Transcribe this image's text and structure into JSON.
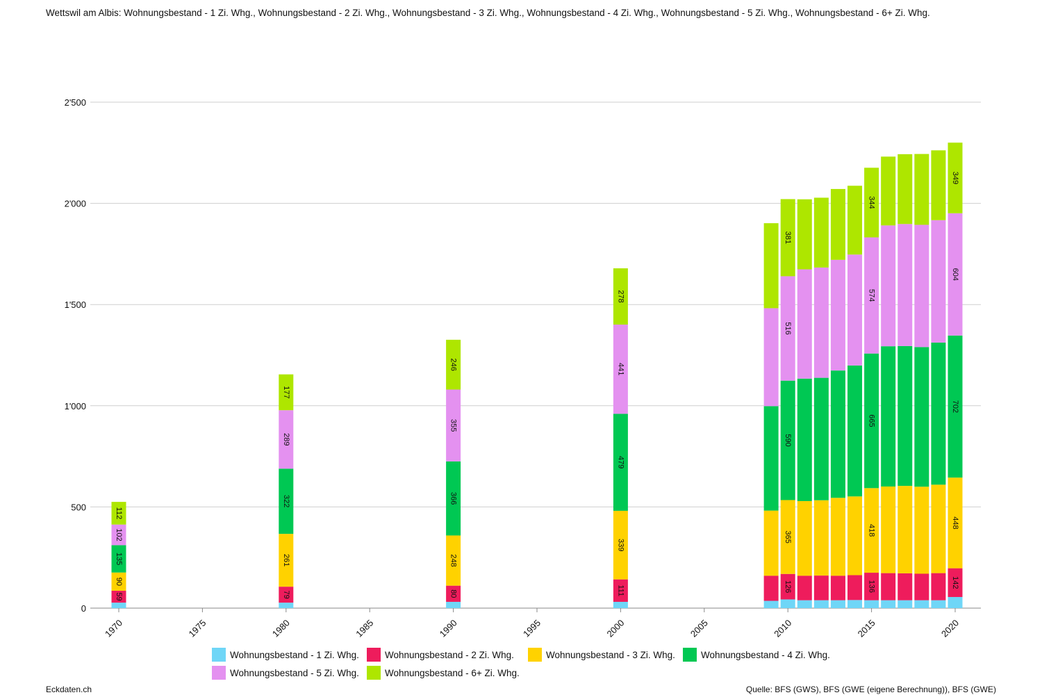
{
  "title": "Wettswil am Albis: Wohnungsbestand - 1 Zi. Whg., Wohnungsbestand - 2 Zi. Whg., Wohnungsbestand - 3 Zi. Whg., Wohnungsbestand - 4 Zi. Whg., Wohnungsbestand - 5 Zi. Whg., Wohnungsbestand - 6+ Zi. Whg.",
  "footer": {
    "brand": "Eckdaten.ch",
    "source": "Quelle: BFS (GWS), BFS (GWE (eigene Berechnung)), BFS (GWE)"
  },
  "chart_data": {
    "type": "bar",
    "stacked": true,
    "y_tick_labels": [
      "0",
      "500",
      "1'000",
      "1'500",
      "2'000",
      "2'500"
    ],
    "y_ticks": [
      0,
      500,
      1000,
      1500,
      2000,
      2500
    ],
    "ylim": [
      0,
      2500
    ],
    "x_tick_labels": [
      "1970",
      "1975",
      "1980",
      "1985",
      "1990",
      "1995",
      "2000",
      "2005",
      "2010",
      "2015",
      "2020"
    ],
    "x_ticks": [
      1970,
      1975,
      1980,
      1985,
      1990,
      1995,
      2000,
      2005,
      2010,
      2015,
      2020
    ],
    "xlim": [
      1968,
      2021
    ],
    "grid": true,
    "legend_position": "bottom",
    "x": [
      1970,
      1980,
      1990,
      2000,
      2009,
      2010,
      2011,
      2012,
      2013,
      2014,
      2015,
      2016,
      2017,
      2018,
      2019,
      2020
    ],
    "series": [
      {
        "name": "Wohnungsbestand - 1 Zi. Whg.",
        "color": "#6fd6f7",
        "values": [
          27,
          27,
          31,
          31,
          36,
          43,
          39,
          39,
          39,
          40,
          39,
          39,
          39,
          39,
          39,
          55
        ]
      },
      {
        "name": "Wohnungsbestand - 2 Zi. Whg.",
        "color": "#ee1c5c",
        "values": [
          59,
          79,
          80,
          111,
          124,
          126,
          121,
          122,
          121,
          123,
          136,
          134,
          133,
          131,
          134,
          142
        ]
      },
      {
        "name": "Wohnungsbestand - 3 Zi. Whg.",
        "color": "#ffd200",
        "values": [
          90,
          261,
          248,
          339,
          322,
          365,
          369,
          372,
          385,
          389,
          418,
          428,
          432,
          430,
          437,
          448
        ]
      },
      {
        "name": "Wohnungsbestand - 4 Zi. Whg.",
        "color": "#00c853",
        "values": [
          135,
          322,
          366,
          479,
          516,
          590,
          605,
          605,
          629,
          647,
          665,
          693,
          691,
          690,
          702,
          702
        ]
      },
      {
        "name": "Wohnungsbestand - 5 Zi. Whg.",
        "color": "#e491f0",
        "values": [
          102,
          289,
          355,
          441,
          484,
          516,
          540,
          545,
          547,
          548,
          574,
          597,
          603,
          604,
          605,
          604
        ]
      },
      {
        "name": "Wohnungsbestand - 6+ Zi. Whg.",
        "color": "#aee600",
        "values": [
          112,
          177,
          246,
          278,
          420,
          381,
          346,
          345,
          350,
          340,
          344,
          340,
          345,
          350,
          345,
          349
        ]
      }
    ],
    "labeled_x": [
      1970,
      1980,
      1990,
      2000,
      2010,
      2015,
      2020
    ]
  }
}
